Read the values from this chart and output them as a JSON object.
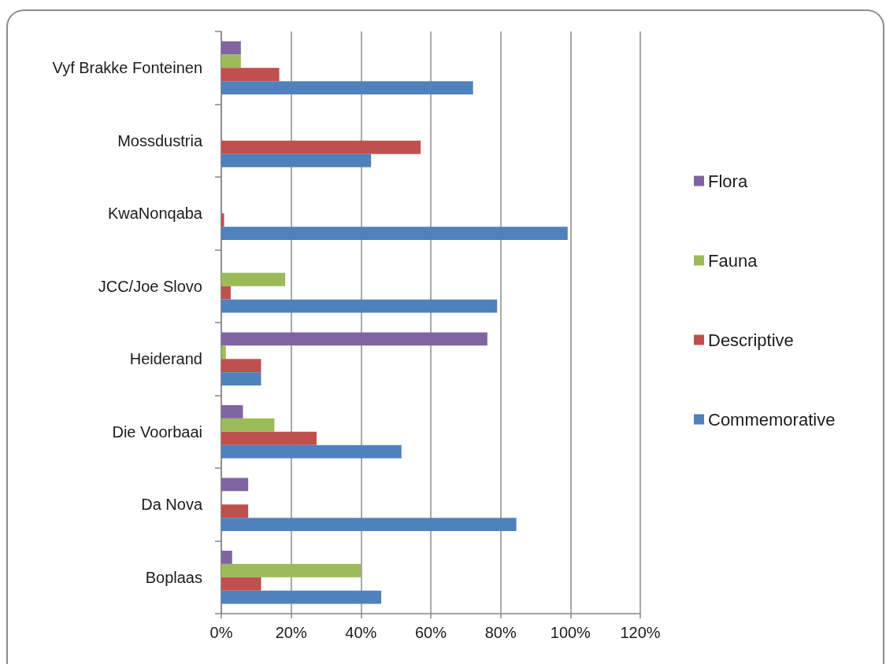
{
  "chart_data": {
    "type": "bar",
    "orientation": "horizontal",
    "categories": [
      "Vyf Brakke Fonteinen",
      "Mossdustria",
      "KwaNonqaba",
      "JCC/Joe Slovo",
      "Heiderand",
      "Die Voorbaai",
      "Da Nova",
      "Boplaas"
    ],
    "series": [
      {
        "name": "Flora",
        "color": "#8064a2",
        "values": [
          5.6,
          null,
          null,
          null,
          76.2,
          6.2,
          7.7,
          3.1
        ]
      },
      {
        "name": "Fauna",
        "color": "#9bbb59",
        "values": [
          5.6,
          null,
          null,
          18.3,
          1.3,
          15.2,
          null,
          40.0
        ]
      },
      {
        "name": "Descriptive",
        "color": "#c0504d",
        "values": [
          16.6,
          57.1,
          0.8,
          2.7,
          11.4,
          27.3,
          7.7,
          11.4
        ]
      },
      {
        "name": "Commemorative",
        "color": "#4f81bd",
        "values": [
          72.1,
          42.9,
          99.2,
          79.0,
          11.4,
          51.6,
          84.5,
          45.8
        ]
      }
    ],
    "xlim": [
      0,
      120
    ],
    "xticks": [
      {
        "value": 0,
        "label": "0%"
      },
      {
        "value": 20,
        "label": "20%"
      },
      {
        "value": 40,
        "label": "40%"
      },
      {
        "value": 60,
        "label": "60%"
      },
      {
        "value": 80,
        "label": "80%"
      },
      {
        "value": 100,
        "label": "100%"
      },
      {
        "value": 120,
        "label": "120%"
      }
    ],
    "grid": "x",
    "legend": "right"
  }
}
